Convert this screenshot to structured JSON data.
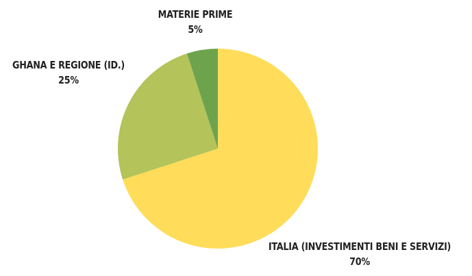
{
  "chart_data": {
    "type": "pie",
    "title": "",
    "slices": [
      {
        "label": "ITALIA (INVESTIMENTI BENI E SERVIZI)",
        "value": 70,
        "display": "70%",
        "color": "#FFDC5A"
      },
      {
        "label": "GHANA E REGIONE (ID.)",
        "value": 25,
        "display": "25%",
        "color": "#B4C35A"
      },
      {
        "label": "MATERIE PRIME",
        "value": 5,
        "display": "5%",
        "color": "#6EA34E"
      }
    ],
    "start_angle_deg": 0,
    "direction": "clockwise",
    "legend": "none"
  }
}
